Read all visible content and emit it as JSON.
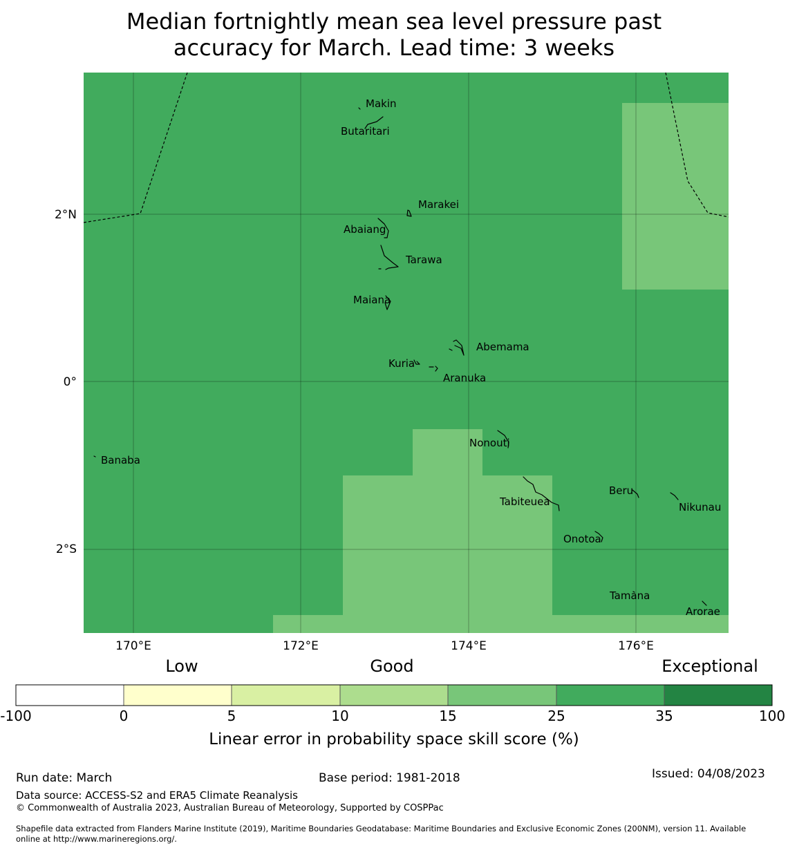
{
  "title": {
    "line1": "Median fortnightly mean sea level pressure past",
    "line2": "accuracy for March. Lead time: 3 weeks"
  },
  "colors": {
    "ocean_35": "#41ab5d",
    "ocean_25": "#78c679",
    "land_line": "#000000"
  },
  "axes": {
    "lat_labels": [
      "2°N",
      "0°",
      "2°S"
    ],
    "lon_labels": [
      "170°E",
      "172°E",
      "174°E",
      "176°E"
    ]
  },
  "places": [
    {
      "key": "makin",
      "label": "Makin"
    },
    {
      "key": "butaritari",
      "label": "Butaritari"
    },
    {
      "key": "marakei",
      "label": "Marakei"
    },
    {
      "key": "abaiang",
      "label": "Abaiang"
    },
    {
      "key": "tarawa",
      "label": "Tarawa"
    },
    {
      "key": "maiana",
      "label": "Maiana"
    },
    {
      "key": "abemama",
      "label": "Abemama"
    },
    {
      "key": "kuria",
      "label": "Kuria"
    },
    {
      "key": "aranuka",
      "label": "Aranuka"
    },
    {
      "key": "banaba",
      "label": "Banaba"
    },
    {
      "key": "nonouti",
      "label": "Nonouti"
    },
    {
      "key": "tabiteuea",
      "label": "Tabiteuea"
    },
    {
      "key": "beru",
      "label": "Beru"
    },
    {
      "key": "nikunau",
      "label": "Nikunau"
    },
    {
      "key": "onotoa",
      "label": "Onotoa"
    },
    {
      "key": "tamana",
      "label": "Tamana"
    },
    {
      "key": "arorae",
      "label": "Arorae"
    }
  ],
  "legend": {
    "categories": [
      "Low",
      "Good",
      "Exceptional"
    ],
    "ticks": [
      "-100",
      "0",
      "5",
      "10",
      "15",
      "25",
      "35",
      "100"
    ],
    "colors": [
      "#ffffff",
      "#ffffcc",
      "#d9f0a3",
      "#addd8e",
      "#78c679",
      "#41ab5d",
      "#238443"
    ],
    "label": "Linear error in probability space skill score (%)"
  },
  "footer": {
    "run_date": "Run date: March",
    "base_period": "Base period: 1981-2018",
    "issued": "Issued: 04/08/2023",
    "data_source": "Data source: ACCESS-S2 and ERA5 Climate Reanalysis",
    "copyright": "© Commonwealth of Australia 2023, Australian Bureau of Meteorology, Supported by COSPPac",
    "shapefile_line1": "Shapefile data extracted from Flanders Marine Institute (2019), Maritime Boundaries Geodatabase: Maritime Boundaries and Exclusive Economic Zones (200NM), version 11. Available",
    "shapefile_line2": "online at http://www.marineregions.org/."
  }
}
